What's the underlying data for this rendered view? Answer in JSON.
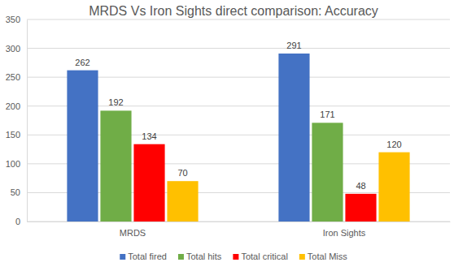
{
  "chart_data": {
    "type": "bar",
    "title": "MRDS Vs Iron Sights direct comparison: Accuracy",
    "categories": [
      "MRDS",
      "Iron Sights"
    ],
    "series": [
      {
        "name": "Total fired",
        "color": "#4472c4",
        "values": [
          262,
          291
        ]
      },
      {
        "name": "Total hits",
        "color": "#70ad47",
        "values": [
          192,
          171
        ]
      },
      {
        "name": "Total critical",
        "color": "#ff0000",
        "values": [
          134,
          48
        ]
      },
      {
        "name": "Total Miss",
        "color": "#ffc000",
        "values": [
          70,
          120
        ]
      }
    ],
    "ylim": [
      0,
      350
    ],
    "yticks": [
      0,
      50,
      100,
      150,
      200,
      250,
      300,
      350
    ],
    "grid": true,
    "legend": "bottom",
    "data_labels": true
  }
}
